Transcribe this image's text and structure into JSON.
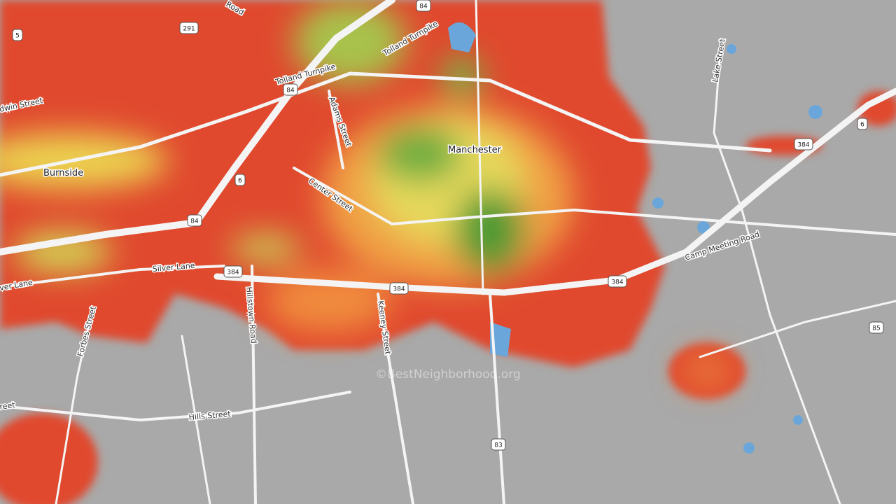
{
  "places": [
    "Manchester",
    "Burnside"
  ],
  "streets": [
    "Road",
    "Tolland Turnpike",
    "Tolland Turnpike",
    "Adams Street",
    "Center Street",
    "dwin Street",
    "Silver Lane",
    "ver Lane",
    "Hillstown Road",
    "Keeney Street",
    "Forbes Street",
    "Hills Street",
    "Camp Meeting Road",
    "Lake Street",
    "reet"
  ],
  "shields": [
    "5",
    "291",
    "84",
    "84",
    "84",
    "6",
    "6",
    "384",
    "384",
    "384",
    "384",
    "85",
    "83"
  ],
  "watermark": "©BestNeighborhood.org"
}
